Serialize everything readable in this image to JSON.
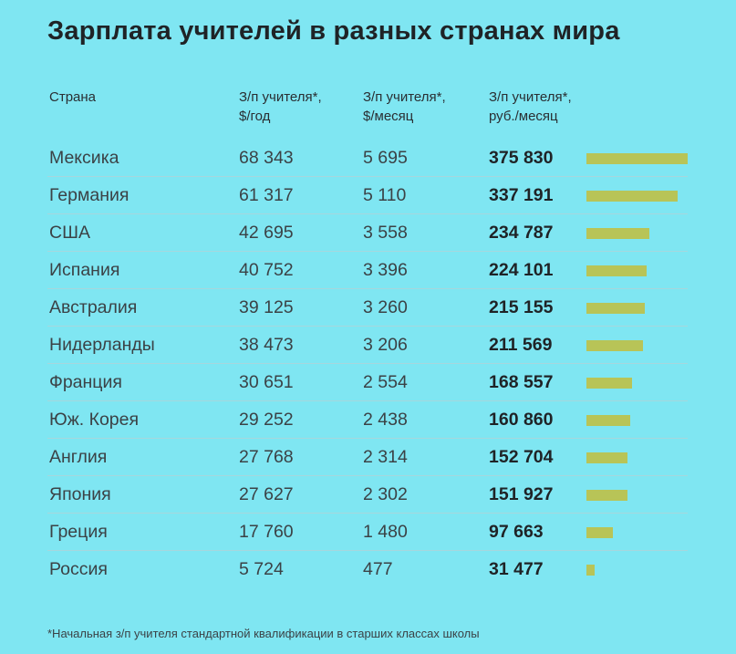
{
  "title": "Зарплата учителей в разных странах мира",
  "headers": {
    "country": "Страна",
    "year": [
      "З/п учителя*,",
      "$/год"
    ],
    "month": [
      "З/п учителя*,",
      "$/месяц"
    ],
    "rub": [
      "З/п учителя*,",
      "руб./месяц"
    ]
  },
  "footnote": "*Начальная з/п учителя стандартной квалификации в старших классах школы",
  "colors": {
    "background": "#7fe6f2",
    "bar": "#b8c457"
  },
  "chart_data": {
    "type": "table",
    "columns": [
      "Страна",
      "З/п учителя*, $/год",
      "З/п учителя*, $/месяц",
      "З/п учителя*, руб./месяц"
    ],
    "rows": [
      {
        "country": "Мексика",
        "usd_year": "68 343",
        "usd_month": "5 695",
        "rub_month": "375 830",
        "value": 375830
      },
      {
        "country": "Германия",
        "usd_year": "61 317",
        "usd_month": "5 110",
        "rub_month": "337 191",
        "value": 337191
      },
      {
        "country": "США",
        "usd_year": "42 695",
        "usd_month": "3 558",
        "rub_month": "234 787",
        "value": 234787
      },
      {
        "country": "Испания",
        "usd_year": "40 752",
        "usd_month": "3 396",
        "rub_month": "224 101",
        "value": 224101
      },
      {
        "country": "Австралия",
        "usd_year": "39 125",
        "usd_month": "3 260",
        "rub_month": "215 155",
        "value": 215155
      },
      {
        "country": "Нидерланды",
        "usd_year": "38 473",
        "usd_month": "3 206",
        "rub_month": "211 569",
        "value": 211569
      },
      {
        "country": "Франция",
        "usd_year": "30 651",
        "usd_month": "2 554",
        "rub_month": "168 557",
        "value": 168557
      },
      {
        "country": "Юж. Корея",
        "usd_year": "29 252",
        "usd_month": "2 438",
        "rub_month": "160 860",
        "value": 160860
      },
      {
        "country": "Англия",
        "usd_year": "27 768",
        "usd_month": "2 314",
        "rub_month": "152 704",
        "value": 152704
      },
      {
        "country": "Япония",
        "usd_year": "27 627",
        "usd_month": "2 302",
        "rub_month": "151 927",
        "value": 151927
      },
      {
        "country": "Греция",
        "usd_year": "17 760",
        "usd_month": "1 480",
        "rub_month": "97 663",
        "value": 97663
      },
      {
        "country": "Россия",
        "usd_year": "5 724",
        "usd_month": "477",
        "rub_month": "31 477",
        "value": 31477
      }
    ],
    "bar_max": 375830
  }
}
